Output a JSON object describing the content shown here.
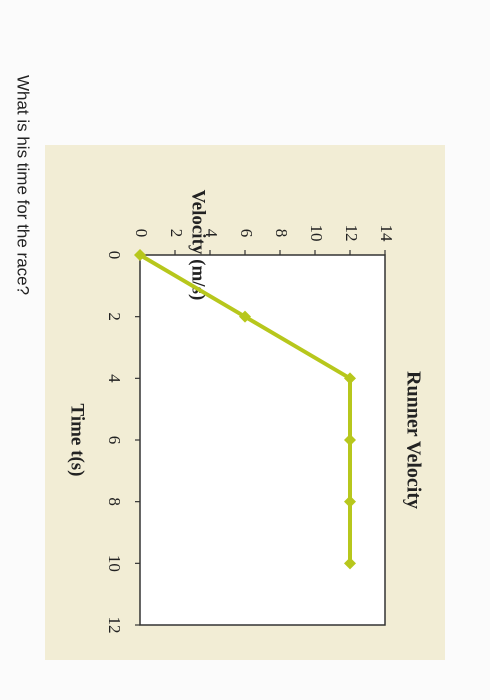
{
  "question": "What is his time for the race?",
  "chart_data": {
    "type": "line",
    "title": "Runner Velocity",
    "x_label": "Time t(s)",
    "y_label": "Velocity (m/s)",
    "x": [
      0,
      2,
      4,
      6,
      8,
      10
    ],
    "values": [
      0,
      6,
      12,
      12,
      12,
      12
    ],
    "color": "#b7c71c",
    "xlim": [
      0,
      12
    ],
    "xticks": [
      0,
      2,
      4,
      6,
      8,
      10,
      12
    ],
    "ylim": [
      0,
      14
    ],
    "yticks": [
      0,
      2,
      4,
      6,
      8,
      10,
      12,
      14
    ],
    "grid": false
  }
}
